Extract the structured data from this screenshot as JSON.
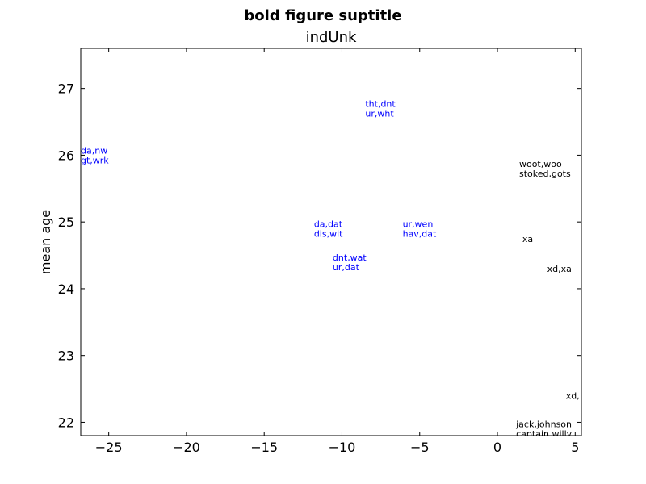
{
  "chart_data": {
    "type": "scatter",
    "suptitle": "bold figure suptitle",
    "title": "indUnk",
    "xlabel": "",
    "ylabel": "mean age",
    "xlim": [
      -26.8,
      5.4
    ],
    "ylim": [
      21.8,
      27.6
    ],
    "xticks": [
      -25,
      -20,
      -15,
      -10,
      -5,
      0,
      5
    ],
    "xtick_labels": [
      "−25",
      "−20",
      "−15",
      "−10",
      "−5",
      "0",
      "5"
    ],
    "yticks": [
      22,
      23,
      24,
      25,
      26,
      27
    ],
    "ytick_labels": [
      "22",
      "23",
      "24",
      "25",
      "26",
      "27"
    ],
    "grid": false,
    "colors": {
      "blue": "#0000ff",
      "black": "#000000"
    },
    "points": [
      {
        "x": -8.5,
        "y": 26.7,
        "lines": [
          "tht,dnt",
          "ur,wht"
        ],
        "color": "blue"
      },
      {
        "x": -26.8,
        "y": 26.0,
        "lines": [
          "da,nw",
          "gt,wrk"
        ],
        "color": "blue"
      },
      {
        "x": 1.4,
        "y": 25.8,
        "lines": [
          "woot,woo",
          "stoked,gots"
        ],
        "color": "black"
      },
      {
        "x": -11.8,
        "y": 24.9,
        "lines": [
          "da,dat",
          "dis,wit"
        ],
        "color": "blue"
      },
      {
        "x": -6.1,
        "y": 24.9,
        "lines": [
          "ur,wen",
          "hav,dat"
        ],
        "color": "blue"
      },
      {
        "x": 1.6,
        "y": 24.75,
        "lines": [
          "xa"
        ],
        "color": "black"
      },
      {
        "x": -10.6,
        "y": 24.4,
        "lines": [
          "dnt,wat",
          "ur,dat"
        ],
        "color": "blue"
      },
      {
        "x": 3.2,
        "y": 24.3,
        "lines": [
          "xd,xa"
        ],
        "color": "black"
      },
      {
        "x": 4.4,
        "y": 22.4,
        "lines": [
          "xd,:\\"
        ],
        "color": "black"
      },
      {
        "x": 1.2,
        "y": 21.9,
        "lines": [
          "jack,johnson",
          "captain,willy"
        ],
        "color": "black"
      }
    ]
  }
}
